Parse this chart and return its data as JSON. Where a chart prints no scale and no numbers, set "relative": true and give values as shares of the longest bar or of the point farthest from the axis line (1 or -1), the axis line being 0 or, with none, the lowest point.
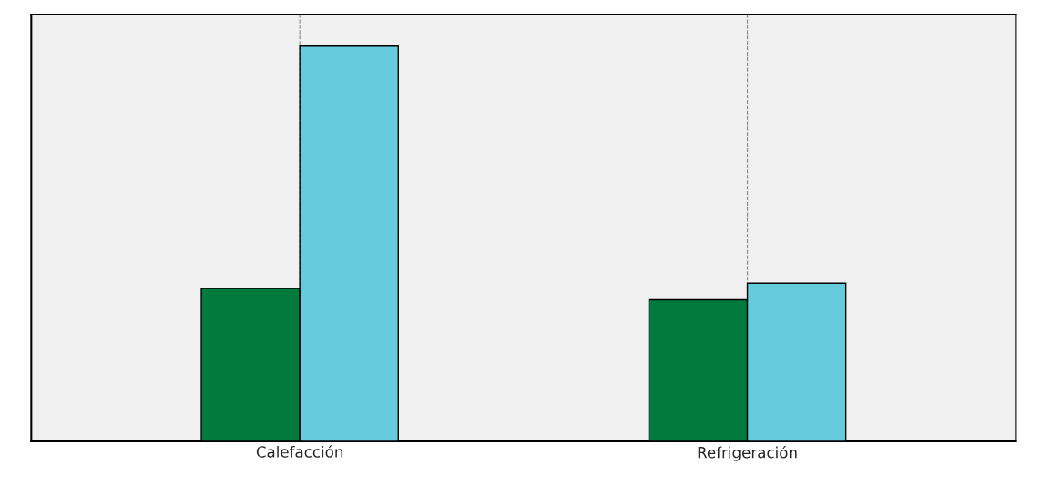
{
  "chart_data": {
    "type": "bar",
    "relative": true,
    "categories": [
      "Calefacción",
      "Refrigeración"
    ],
    "series": [
      {
        "color": "#007a3d",
        "values": [
          0.387,
          0.358
        ]
      },
      {
        "color": "#66ccdd",
        "values": [
          1,
          0.4
        ]
      }
    ],
    "grid": "x"
  }
}
